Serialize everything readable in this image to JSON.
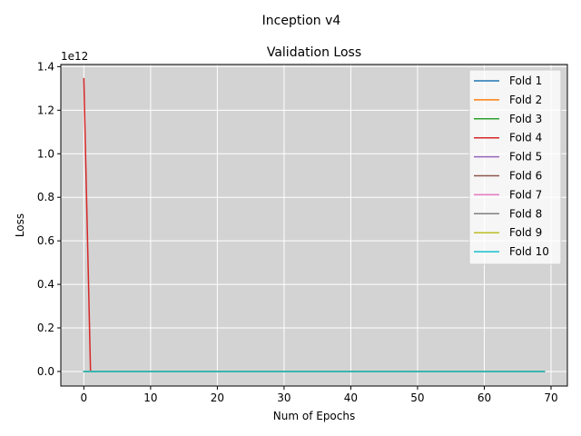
{
  "figure": {
    "suptitle": "Inception v4"
  },
  "chart_data": {
    "type": "line",
    "title": "Validation Loss",
    "xlabel": "Num of Epochs",
    "ylabel": "Loss",
    "y_offset_text": "1e12",
    "xlim": [
      -3.45,
      72.45
    ],
    "ylim": [
      -0.067,
      1.41
    ],
    "xticks": [
      0,
      10,
      20,
      30,
      40,
      50,
      60,
      70
    ],
    "yticks": [
      0.0,
      0.2,
      0.4,
      0.6,
      0.8,
      1.0,
      1.2,
      1.4
    ],
    "ytick_labels": [
      "0.0",
      "0.2",
      "0.4",
      "0.6",
      "0.8",
      "1.0",
      "1.2",
      "1.4"
    ],
    "grid": true,
    "legend_position": "upper-right",
    "plot_background": "#d3d3d3",
    "series": [
      {
        "name": "Fold 1",
        "color": "#1f77b4",
        "points": [
          [
            0,
            0.0
          ],
          [
            69,
            0.0
          ]
        ]
      },
      {
        "name": "Fold 2",
        "color": "#ff7f0e",
        "points": [
          [
            0,
            0.0
          ],
          [
            69,
            0.0
          ]
        ]
      },
      {
        "name": "Fold 3",
        "color": "#2ca02c",
        "points": [
          [
            0,
            0.0
          ],
          [
            69,
            0.0
          ]
        ]
      },
      {
        "name": "Fold 4",
        "color": "#d62728",
        "points": [
          [
            0,
            1.345
          ],
          [
            1,
            0.0
          ],
          [
            69,
            0.0
          ]
        ]
      },
      {
        "name": "Fold 5",
        "color": "#9467bd",
        "points": [
          [
            0,
            0.0
          ],
          [
            69,
            0.0
          ]
        ]
      },
      {
        "name": "Fold 6",
        "color": "#8c564b",
        "points": [
          [
            0,
            0.0
          ],
          [
            69,
            0.0
          ]
        ]
      },
      {
        "name": "Fold 7",
        "color": "#e377c2",
        "points": [
          [
            0,
            0.0
          ],
          [
            69,
            0.0
          ]
        ]
      },
      {
        "name": "Fold 8",
        "color": "#7f7f7f",
        "points": [
          [
            0,
            0.0
          ],
          [
            69,
            0.0
          ]
        ]
      },
      {
        "name": "Fold 9",
        "color": "#bcbd22",
        "points": [
          [
            0,
            0.0
          ],
          [
            69,
            0.0
          ]
        ]
      },
      {
        "name": "Fold 10",
        "color": "#17becf",
        "points": [
          [
            0,
            0.0
          ],
          [
            69,
            0.0
          ]
        ]
      }
    ]
  }
}
